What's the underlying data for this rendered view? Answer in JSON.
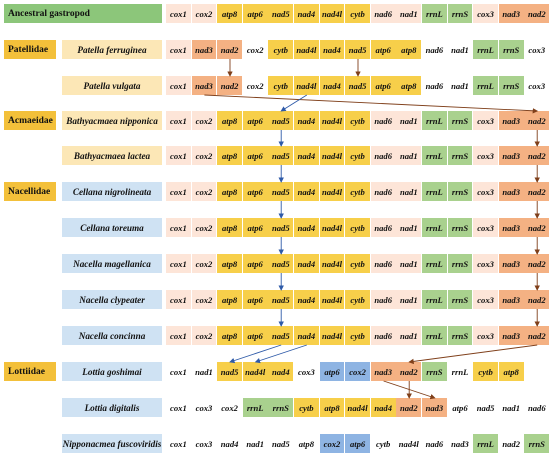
{
  "colors": {
    "ancestral": "#8cc67a",
    "family": "#f3c03a",
    "patellidae_species": "#fce7b6",
    "acmaeidae_species": "#fce7b6",
    "nacellidae_species": "#cfe2f3",
    "lottiidae_species": "#cfe2f3",
    "cox": "#fde5d8",
    "yellow_gene": "#f7cf4a",
    "rrn": "#a9d18e",
    "nad_orange": "#f4b183",
    "atp_blue": "#8eb4e3",
    "plain": "#ffffff",
    "line_dark": "#7f3f1a",
    "line_blue": "#2e5aa8"
  },
  "gene_types": {
    "cox1": "cox",
    "cox2": "cox",
    "cox3": "cox",
    "atp8": "yellow_gene",
    "atp6": "yellow_gene",
    "nad5": "yellow_gene",
    "nad4": "yellow_gene",
    "nad4l": "yellow_gene",
    "cytb": "yellow_gene",
    "nad6": "cox",
    "nad1": "cox",
    "rrnL": "rrn",
    "rrnS": "rrn",
    "nad3": "nad_orange",
    "nad2": "nad_orange"
  },
  "rows": [
    {
      "label": "Ancestral gastropod",
      "kind": "ancestral",
      "family": "",
      "genes": [
        "cox1",
        "cox2",
        "atp8",
        "atp6",
        "nad5",
        "nad4",
        "nad4l",
        "cytb",
        "nad6",
        "nad1",
        "rrnL",
        "rrnS",
        "cox3",
        "nad3",
        "nad2"
      ]
    },
    {
      "label": "Patella ferruginea",
      "kind": "species",
      "family": "Patellidae",
      "genes": [
        "cox1",
        "nad3",
        "nad2",
        "cox2",
        "cytb",
        "nad4l",
        "nad4",
        "nad5",
        "atp6",
        "atp8",
        "nad6",
        "nad1",
        "rrnL",
        "rrnS",
        "cox3"
      ]
    },
    {
      "label": "Patella vulgata",
      "kind": "species",
      "family": "",
      "genes": [
        "cox1",
        "nad3",
        "nad2",
        "cox2",
        "cytb",
        "nad4l",
        "nad4",
        "nad5",
        "atp6",
        "atp8",
        "nad6",
        "nad1",
        "rrnL",
        "rrnS",
        "cox3"
      ]
    },
    {
      "label": "Bathyacmaea nipponica",
      "kind": "species",
      "family": "Acmaeidae",
      "genes": [
        "cox1",
        "cox2",
        "atp8",
        "atp6",
        "nad5",
        "nad4",
        "nad4l",
        "cytb",
        "nad6",
        "nad1",
        "rrnL",
        "rrnS",
        "cox3",
        "nad3",
        "nad2"
      ]
    },
    {
      "label": "Bathyacmaea lactea",
      "kind": "species",
      "family": "",
      "genes": [
        "cox1",
        "cox2",
        "atp8",
        "atp6",
        "nad5",
        "nad4",
        "nad4l",
        "cytb",
        "nad6",
        "nad1",
        "rrnL",
        "rrnS",
        "cox3",
        "nad3",
        "nad2"
      ]
    },
    {
      "label": "Cellana nigrolineata",
      "kind": "species",
      "family": "Nacellidae",
      "genes": [
        "cox1",
        "cox2",
        "atp8",
        "atp6",
        "nad5",
        "nad4",
        "nad4l",
        "cytb",
        "nad6",
        "nad1",
        "rrnL",
        "rrnS",
        "cox3",
        "nad3",
        "nad2"
      ]
    },
    {
      "label": "Cellana toreuma",
      "kind": "species",
      "family": "",
      "genes": [
        "cox1",
        "cox2",
        "atp8",
        "atp6",
        "nad5",
        "nad4",
        "nad4l",
        "cytb",
        "nad6",
        "nad1",
        "rrnL",
        "rrnS",
        "cox3",
        "nad3",
        "nad2"
      ]
    },
    {
      "label": "Nacella magellanica",
      "kind": "species",
      "family": "",
      "genes": [
        "cox1",
        "cox2",
        "atp8",
        "atp6",
        "nad5",
        "nad4",
        "nad4l",
        "cytb",
        "nad6",
        "nad1",
        "rrnL",
        "rrnS",
        "cox3",
        "nad3",
        "nad2"
      ]
    },
    {
      "label": "Nacella clypeater",
      "kind": "species",
      "family": "",
      "genes": [
        "cox1",
        "cox2",
        "atp8",
        "atp6",
        "nad5",
        "nad4",
        "nad4l",
        "cytb",
        "nad6",
        "nad1",
        "rrnL",
        "rrnS",
        "cox3",
        "nad3",
        "nad2"
      ]
    },
    {
      "label": "Nacella concinna",
      "kind": "species",
      "family": "",
      "genes": [
        "cox1",
        "cox2",
        "atp8",
        "atp6",
        "nad5",
        "nad4",
        "nad4l",
        "cytb",
        "nad6",
        "nad1",
        "rrnL",
        "rrnS",
        "cox3",
        "nad3",
        "nad2"
      ]
    },
    {
      "label": "Lottia goshimai",
      "kind": "species",
      "family": "Lottiidae",
      "genes": [
        "cox1",
        "nad1",
        "nad5",
        "nad4l",
        "nad4",
        "cox3",
        "atp6",
        "cox2",
        "nad3",
        "nad2",
        "rrnS",
        "rrnL",
        "cytb",
        "atp8"
      ]
    },
    {
      "label": "Lottia digitalis",
      "kind": "species",
      "family": "",
      "genes": [
        "cox1",
        "cox3",
        "cox2",
        "rrnL",
        "rrnS",
        "cytb",
        "atp8",
        "nad4l",
        "nad4",
        "nad2",
        "nad3",
        "atp6",
        "nad5",
        "nad1",
        "nad6"
      ]
    },
    {
      "label": "Nipponacmea fuscoviridis",
      "kind": "species",
      "family": "",
      "genes": [
        "cox1",
        "cox3",
        "nad4",
        "nad1",
        "nad5",
        "atp8",
        "cox2",
        "atp6",
        "cytb",
        "nad4l",
        "nad6",
        "nad3",
        "rrnL",
        "nad2",
        "rrnS"
      ]
    }
  ],
  "row_gene_overrides": {
    "1": {
      "1": "nad_orange",
      "2": "nad_orange",
      "3": "plain",
      "10": "plain",
      "11": "plain",
      "14": "plain"
    },
    "2": {
      "1": "nad_orange",
      "2": "nad_orange",
      "3": "plain",
      "10": "plain",
      "11": "plain",
      "14": "plain"
    },
    "10": {
      "0": "plain",
      "1": "plain",
      "2": "yellow_gene",
      "3": "yellow_gene",
      "4": "yellow_gene",
      "5": "plain",
      "6": "atp_blue",
      "7": "atp_blue",
      "8": "nad_orange",
      "9": "nad_orange",
      "10": "rrn",
      "11": "plain",
      "12": "yellow_gene",
      "13": "yellow_gene"
    },
    "11": {
      "0": "plain",
      "1": "plain",
      "2": "plain",
      "3": "rrn",
      "4": "rrn",
      "5": "yellow_gene",
      "6": "yellow_gene",
      "7": "yellow_gene",
      "8": "yellow_gene",
      "9": "nad_orange",
      "10": "nad_orange",
      "11": "plain",
      "12": "plain",
      "13": "plain",
      "14": "plain"
    },
    "12": {
      "0": "plain",
      "1": "plain",
      "2": "plain",
      "3": "plain",
      "4": "plain",
      "5": "plain",
      "6": "atp_blue",
      "7": "atp_blue",
      "8": "plain",
      "9": "plain",
      "10": "plain",
      "11": "plain",
      "12": "rrn",
      "13": "plain",
      "14": "rrn"
    }
  }
}
